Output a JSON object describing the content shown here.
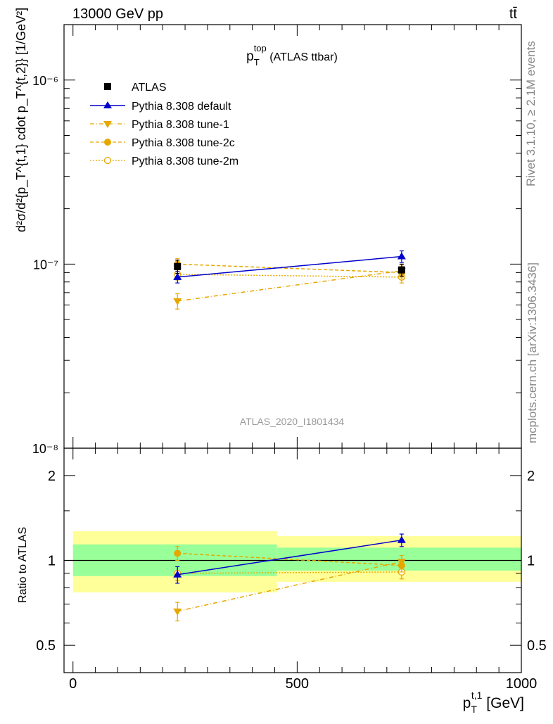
{
  "header": {
    "left": "13000 GeV pp",
    "right": "tt̄"
  },
  "side_labels": {
    "rivet": "Rivet 3.1.10, ≥ 2.1M events",
    "mcplots": "mcplots.cern.ch [arXiv:1306.3436]"
  },
  "chart_data": [
    {
      "type": "scatter",
      "panel": "main",
      "title_main": "p",
      "title_sub": "T",
      "title_sup": "top",
      "title_rest": " (ATLAS ttbar)",
      "watermark": "ATLAS_2020_I1801434",
      "ylabel": "d²σ/d²{p_T^{t,1} cdot p_T^{t,2}} [1/GeV²]",
      "yscale": "log",
      "ylim": [
        1e-08,
        2e-06
      ],
      "xlim": [
        -20,
        1000
      ],
      "ytick_labels": [
        "10⁻⁸",
        "10⁻⁷",
        "10⁻⁶"
      ],
      "legend_position": "top-left",
      "x": [
        233,
        733
      ],
      "series": [
        {
          "name": "ATLAS",
          "color": "#000000",
          "marker": "square",
          "line": "none",
          "values": [
            9.7e-08,
            9.3e-08
          ],
          "err": [
            8e-09,
            7e-09
          ]
        },
        {
          "name": "Pythia 8.308 default",
          "color": "#0000cc",
          "marker": "triangle-up",
          "line": "solid",
          "values": [
            8.5e-08,
            1.1e-07
          ],
          "err": [
            6e-09,
            8e-09
          ]
        },
        {
          "name": "Pythia 8.308 tune-1",
          "color": "#e6a800",
          "marker": "triangle-down",
          "line": "dashdot",
          "values": [
            6.3e-08,
            9.2e-08
          ],
          "err": [
            6e-09,
            7e-09
          ]
        },
        {
          "name": "Pythia 8.308 tune-2c",
          "color": "#e6a800",
          "marker": "circle",
          "line": "dashed",
          "values": [
            1e-07,
            9e-08
          ],
          "err": [
            7e-09,
            7e-09
          ]
        },
        {
          "name": "Pythia 8.308 tune-2m",
          "color": "#e6a800",
          "marker": "circle-open",
          "line": "dotted",
          "values": [
            8.8e-08,
            8.5e-08
          ],
          "err": [
            6e-09,
            6e-09
          ]
        }
      ]
    },
    {
      "type": "scatter",
      "panel": "ratio",
      "ylabel": "Ratio to ATLAS",
      "xlabel_main": "p",
      "xlabel_sub": "T",
      "xlabel_sup": "t,1",
      "xlabel_rest": " [GeV]",
      "yscale": "log",
      "ylim": [
        0.4,
        2.5
      ],
      "xlim": [
        -20,
        1000
      ],
      "ytick_labels": [
        "0.5",
        "1",
        "2"
      ],
      "xtick_labels": [
        "0",
        "500",
        "1000"
      ],
      "bands": [
        {
          "x0": 0,
          "x1": 455,
          "inner": [
            0.88,
            1.14
          ],
          "outer": [
            0.77,
            1.27
          ]
        },
        {
          "x0": 455,
          "x1": 1000,
          "inner": [
            0.92,
            1.11
          ],
          "outer": [
            0.84,
            1.22
          ]
        }
      ],
      "x": [
        233,
        733
      ],
      "series": [
        {
          "name": "Pythia 8.308 default",
          "values": [
            0.89,
            1.18
          ],
          "err": [
            0.06,
            0.06
          ]
        },
        {
          "name": "Pythia 8.308 tune-1",
          "values": [
            0.66,
            0.99
          ],
          "err": [
            0.05,
            0.05
          ]
        },
        {
          "name": "Pythia 8.308 tune-2c",
          "values": [
            1.06,
            0.96
          ],
          "err": [
            0.06,
            0.05
          ]
        },
        {
          "name": "Pythia 8.308 tune-2m",
          "values": [
            0.9,
            0.91
          ],
          "err": [
            0.05,
            0.05
          ]
        }
      ]
    }
  ]
}
